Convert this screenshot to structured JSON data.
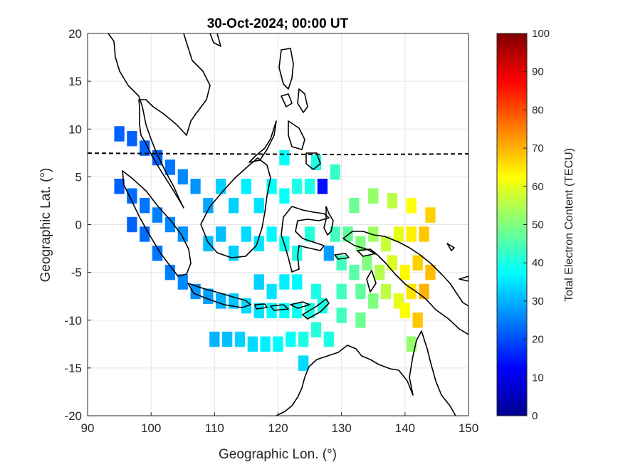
{
  "chart_data": {
    "type": "heatmap",
    "title": "30-Oct-2024; 00:00 UT",
    "xlabel": "Geographic Lon. (°)",
    "ylabel": "Geographic Lat. (°)",
    "colorbar_label": "Total Electron Content (TECU)",
    "xlim": [
      90,
      150
    ],
    "ylim": [
      -20,
      20
    ],
    "clim": [
      0,
      100
    ],
    "x_ticks": [
      "90",
      "100",
      "110",
      "120",
      "130",
      "140",
      "150"
    ],
    "y_ticks": [
      "20",
      "15",
      "10",
      "5",
      "0",
      "-5",
      "-10",
      "-15",
      "-20"
    ],
    "colorbar_ticks": [
      "100",
      "90",
      "80",
      "70",
      "60",
      "50",
      "40",
      "30",
      "20",
      "10",
      "0"
    ],
    "colormap": "jet",
    "grid": true,
    "magnetic_equator_lat": 7.4,
    "cells": [
      {
        "lon": 95,
        "lat": 9.5,
        "tec": 22
      },
      {
        "lon": 97,
        "lat": 9,
        "tec": 22
      },
      {
        "lon": 99,
        "lat": 8,
        "tec": 22
      },
      {
        "lon": 101,
        "lat": 7,
        "tec": 22
      },
      {
        "lon": 103,
        "lat": 6,
        "tec": 24
      },
      {
        "lon": 105,
        "lat": 5,
        "tec": 26
      },
      {
        "lon": 95,
        "lat": 4,
        "tec": 22
      },
      {
        "lon": 97,
        "lat": 3,
        "tec": 23
      },
      {
        "lon": 99,
        "lat": 2,
        "tec": 24
      },
      {
        "lon": 101,
        "lat": 1,
        "tec": 25
      },
      {
        "lon": 103,
        "lat": 0,
        "tec": 26
      },
      {
        "lon": 105,
        "lat": -1,
        "tec": 27
      },
      {
        "lon": 97,
        "lat": 0,
        "tec": 22
      },
      {
        "lon": 99,
        "lat": -1,
        "tec": 23
      },
      {
        "lon": 101,
        "lat": -3,
        "tec": 24
      },
      {
        "lon": 103,
        "lat": -5,
        "tec": 25
      },
      {
        "lon": 105,
        "lat": -6,
        "tec": 26
      },
      {
        "lon": 107,
        "lat": -7,
        "tec": 27
      },
      {
        "lon": 109,
        "lat": -7.5,
        "tec": 28
      },
      {
        "lon": 111,
        "lat": -8,
        "tec": 30
      },
      {
        "lon": 113,
        "lat": -8,
        "tec": 32
      },
      {
        "lon": 115,
        "lat": -8.5,
        "tec": 34
      },
      {
        "lon": 117,
        "lat": -9,
        "tec": 35
      },
      {
        "lon": 119,
        "lat": -9,
        "tec": 37
      },
      {
        "lon": 121,
        "lat": -9,
        "tec": 38
      },
      {
        "lon": 123,
        "lat": -9,
        "tec": 39
      },
      {
        "lon": 125,
        "lat": -9,
        "tec": 40
      },
      {
        "lon": 127,
        "lat": -8.5,
        "tec": 40
      },
      {
        "lon": 107,
        "lat": 4,
        "tec": 27
      },
      {
        "lon": 109,
        "lat": 2,
        "tec": 29
      },
      {
        "lon": 111,
        "lat": 4,
        "tec": 33
      },
      {
        "lon": 113,
        "lat": 2,
        "tec": 33
      },
      {
        "lon": 115,
        "lat": 4,
        "tec": 36
      },
      {
        "lon": 117,
        "lat": 2,
        "tec": 35
      },
      {
        "lon": 119,
        "lat": 4,
        "tec": 38
      },
      {
        "lon": 121,
        "lat": 3,
        "tec": 38
      },
      {
        "lon": 123,
        "lat": 4,
        "tec": 40
      },
      {
        "lon": 125,
        "lat": 4,
        "tec": 40
      },
      {
        "lon": 109,
        "lat": -2,
        "tec": 31
      },
      {
        "lon": 111,
        "lat": -1,
        "tec": 31
      },
      {
        "lon": 113,
        "lat": -3,
        "tec": 33
      },
      {
        "lon": 115,
        "lat": -1,
        "tec": 34
      },
      {
        "lon": 117,
        "lat": -2,
        "tec": 35
      },
      {
        "lon": 119,
        "lat": -1,
        "tec": 37
      },
      {
        "lon": 121,
        "lat": -2,
        "tec": 39
      },
      {
        "lon": 123,
        "lat": -3,
        "tec": 40
      },
      {
        "lon": 125,
        "lat": -1,
        "tec": 41
      },
      {
        "lon": 121,
        "lat": 7,
        "tec": 38
      },
      {
        "lon": 126,
        "lat": 6.5,
        "tec": 40
      },
      {
        "lon": 129,
        "lat": 5.5,
        "tec": 43
      },
      {
        "lon": 127,
        "lat": 4,
        "tec": 14
      },
      {
        "lon": 132,
        "lat": 2,
        "tec": 48
      },
      {
        "lon": 135,
        "lat": 3,
        "tec": 52
      },
      {
        "lon": 138,
        "lat": 2.5,
        "tec": 56
      },
      {
        "lon": 141,
        "lat": 2,
        "tec": 62
      },
      {
        "lon": 144,
        "lat": 1,
        "tec": 67
      },
      {
        "lon": 129,
        "lat": -1,
        "tec": 44
      },
      {
        "lon": 131,
        "lat": -1,
        "tec": 47
      },
      {
        "lon": 133,
        "lat": -2,
        "tec": 50
      },
      {
        "lon": 135,
        "lat": -1,
        "tec": 53
      },
      {
        "lon": 137,
        "lat": -2,
        "tec": 57
      },
      {
        "lon": 139,
        "lat": -1,
        "tec": 60
      },
      {
        "lon": 141,
        "lat": -1,
        "tec": 64
      },
      {
        "lon": 143,
        "lat": -1,
        "tec": 68
      },
      {
        "lon": 128,
        "lat": -3,
        "tec": 28
      },
      {
        "lon": 130,
        "lat": -4,
        "tec": 44
      },
      {
        "lon": 132,
        "lat": -5,
        "tec": 46
      },
      {
        "lon": 134,
        "lat": -4,
        "tec": 50
      },
      {
        "lon": 136,
        "lat": -5,
        "tec": 55
      },
      {
        "lon": 138,
        "lat": -4,
        "tec": 59
      },
      {
        "lon": 140,
        "lat": -5,
        "tec": 63
      },
      {
        "lon": 142,
        "lat": -4,
        "tec": 67
      },
      {
        "lon": 144,
        "lat": -5,
        "tec": 69
      },
      {
        "lon": 130,
        "lat": -7,
        "tec": 44
      },
      {
        "lon": 133,
        "lat": -7,
        "tec": 47
      },
      {
        "lon": 135,
        "lat": -8,
        "tec": 50
      },
      {
        "lon": 137,
        "lat": -7,
        "tec": 56
      },
      {
        "lon": 139,
        "lat": -8,
        "tec": 60
      },
      {
        "lon": 141,
        "lat": -7,
        "tec": 65
      },
      {
        "lon": 143,
        "lat": -7,
        "tec": 70
      },
      {
        "lon": 130,
        "lat": -9.5,
        "tec": 44
      },
      {
        "lon": 133,
        "lat": -10,
        "tec": 48
      },
      {
        "lon": 140,
        "lat": -9,
        "tec": 62
      },
      {
        "lon": 142,
        "lat": -10,
        "tec": 68
      },
      {
        "lon": 110,
        "lat": -12,
        "tec": 30
      },
      {
        "lon": 112,
        "lat": -12,
        "tec": 31
      },
      {
        "lon": 114,
        "lat": -12,
        "tec": 33
      },
      {
        "lon": 116,
        "lat": -12.5,
        "tec": 34
      },
      {
        "lon": 118,
        "lat": -12.5,
        "tec": 36
      },
      {
        "lon": 120,
        "lat": -12.5,
        "tec": 37
      },
      {
        "lon": 122,
        "lat": -12,
        "tec": 38
      },
      {
        "lon": 124,
        "lat": -12,
        "tec": 40
      },
      {
        "lon": 126,
        "lat": -11,
        "tec": 41
      },
      {
        "lon": 124,
        "lat": -14.5,
        "tec": 34
      },
      {
        "lon": 128,
        "lat": -12,
        "tec": 40
      },
      {
        "lon": 141,
        "lat": -12.5,
        "tec": 52
      },
      {
        "lon": 123,
        "lat": -6,
        "tec": 37
      },
      {
        "lon": 126,
        "lat": -7,
        "tec": 40
      },
      {
        "lon": 121,
        "lat": -6,
        "tec": 36
      },
      {
        "lon": 119,
        "lat": -7,
        "tec": 35
      },
      {
        "lon": 117,
        "lat": -6,
        "tec": 33
      }
    ]
  }
}
